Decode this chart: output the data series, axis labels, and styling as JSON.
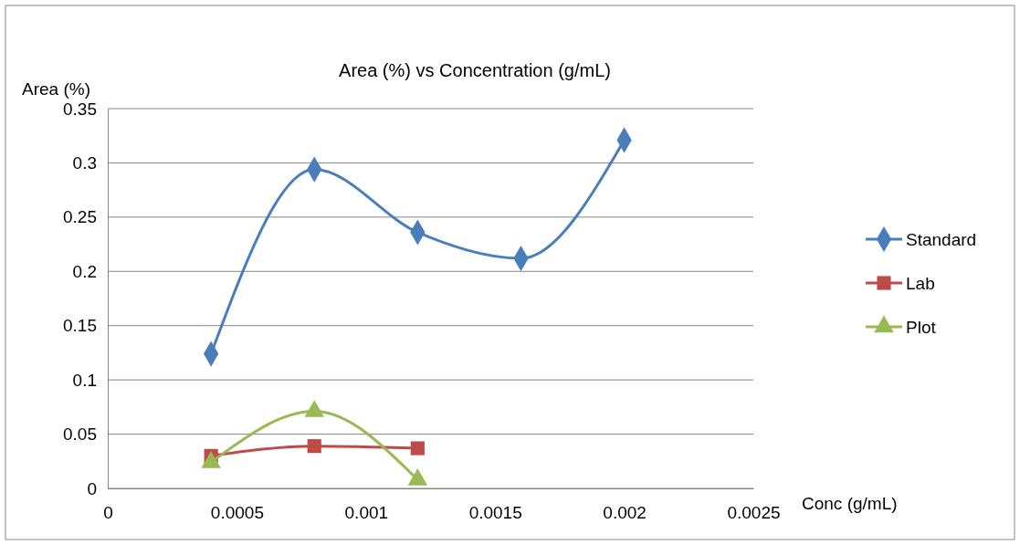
{
  "chart_data": {
    "type": "line",
    "title": "Area (%) vs Concentration (g/mL)",
    "xlabel": "Conc (g/mL)",
    "ylabel": "Area (%)",
    "xlim": [
      0,
      0.0025
    ],
    "xticks": [
      0,
      0.0005,
      0.001,
      0.0015,
      0.002,
      0.0025
    ],
    "ylim": [
      0,
      0.35
    ],
    "yticks": [
      0,
      0.05,
      0.1,
      0.15,
      0.2,
      0.25,
      0.3,
      0.35
    ],
    "grid": "y",
    "legend": "right",
    "line_style": "solid",
    "series": [
      {
        "name": "Standard",
        "color": "#4a7ebb",
        "marker": "diamond",
        "x": [
          0.0004,
          0.0008,
          0.0012,
          0.0016,
          0.002
        ],
        "values": [
          0.124,
          0.294,
          0.236,
          0.212,
          0.321
        ]
      },
      {
        "name": "Lab",
        "color": "#be4b48",
        "marker": "square",
        "x": [
          0.0004,
          0.0008,
          0.0012
        ],
        "values": [
          0.03,
          0.039,
          0.037
        ]
      },
      {
        "name": "Plot",
        "color": "#98b954",
        "marker": "triangle",
        "x": [
          0.0004,
          0.0008,
          0.0012
        ],
        "values": [
          0.024,
          0.071,
          0.008
        ]
      }
    ]
  }
}
